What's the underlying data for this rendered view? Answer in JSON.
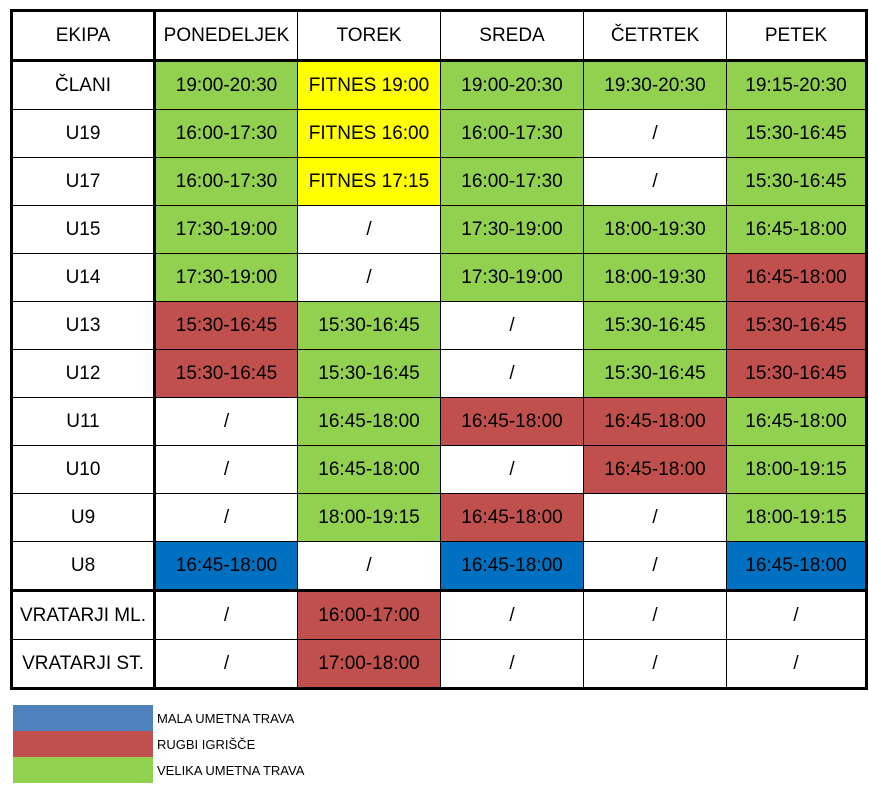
{
  "colors": {
    "green": "#92d050",
    "yellow": "#ffff00",
    "red": "#c0504d",
    "blue": "#0070c0",
    "legend_blue": "#4f81bd",
    "legend_red": "#c0504d",
    "legend_green": "#92d050"
  },
  "schedule": {
    "headers": [
      "EKIPA",
      "PONEDELJEK",
      "TOREK",
      "SREDA",
      "ČETRTEK",
      "PETEK"
    ],
    "rows": [
      {
        "team": "ČLANI",
        "cells": [
          {
            "text": "19:00-20:30",
            "color": "green"
          },
          {
            "text": "FITNES 19:00",
            "color": "yellow"
          },
          {
            "text": "19:00-20:30",
            "color": "green"
          },
          {
            "text": "19:30-20:30",
            "color": "green"
          },
          {
            "text": "19:15-20:30",
            "color": "green"
          }
        ]
      },
      {
        "team": "U19",
        "cells": [
          {
            "text": "16:00-17:30",
            "color": "green"
          },
          {
            "text": "FITNES 16:00",
            "color": "yellow"
          },
          {
            "text": "16:00-17:30",
            "color": "green"
          },
          {
            "text": "/",
            "color": "white"
          },
          {
            "text": "15:30-16:45",
            "color": "green"
          }
        ]
      },
      {
        "team": "U17",
        "cells": [
          {
            "text": "16:00-17:30",
            "color": "green"
          },
          {
            "text": "FITNES 17:15",
            "color": "yellow"
          },
          {
            "text": "16:00-17:30",
            "color": "green"
          },
          {
            "text": "/",
            "color": "white"
          },
          {
            "text": "15:30-16:45",
            "color": "green"
          }
        ]
      },
      {
        "team": "U15",
        "cells": [
          {
            "text": "17:30-19:00",
            "color": "green"
          },
          {
            "text": "/",
            "color": "white"
          },
          {
            "text": "17:30-19:00",
            "color": "green"
          },
          {
            "text": "18:00-19:30",
            "color": "green"
          },
          {
            "text": "16:45-18:00",
            "color": "green"
          }
        ]
      },
      {
        "team": "U14",
        "cells": [
          {
            "text": "17:30-19:00",
            "color": "green"
          },
          {
            "text": "/",
            "color": "white"
          },
          {
            "text": "17:30-19:00",
            "color": "green"
          },
          {
            "text": "18:00-19:30",
            "color": "green"
          },
          {
            "text": "16:45-18:00",
            "color": "red"
          }
        ]
      },
      {
        "team": "U13",
        "cells": [
          {
            "text": "15:30-16:45",
            "color": "red"
          },
          {
            "text": "15:30-16:45",
            "color": "green"
          },
          {
            "text": "/",
            "color": "white"
          },
          {
            "text": "15:30-16:45",
            "color": "green"
          },
          {
            "text": "15:30-16:45",
            "color": "red"
          }
        ]
      },
      {
        "team": "U12",
        "cells": [
          {
            "text": "15:30-16:45",
            "color": "red"
          },
          {
            "text": "15:30-16:45",
            "color": "green"
          },
          {
            "text": "/",
            "color": "white"
          },
          {
            "text": "15:30-16:45",
            "color": "green"
          },
          {
            "text": "15:30-16:45",
            "color": "red"
          }
        ]
      },
      {
        "team": "U11",
        "cells": [
          {
            "text": "/",
            "color": "white"
          },
          {
            "text": "16:45-18:00",
            "color": "green"
          },
          {
            "text": "16:45-18:00",
            "color": "red"
          },
          {
            "text": "16:45-18:00",
            "color": "red"
          },
          {
            "text": "16:45-18:00",
            "color": "green"
          }
        ]
      },
      {
        "team": "U10",
        "cells": [
          {
            "text": "/",
            "color": "white"
          },
          {
            "text": "16:45-18:00",
            "color": "green"
          },
          {
            "text": "/",
            "color": "white"
          },
          {
            "text": "16:45-18:00",
            "color": "red"
          },
          {
            "text": "18:00-19:15",
            "color": "green"
          }
        ]
      },
      {
        "team": "U9",
        "cells": [
          {
            "text": "/",
            "color": "white"
          },
          {
            "text": "18:00-19:15",
            "color": "green"
          },
          {
            "text": "16:45-18:00",
            "color": "red"
          },
          {
            "text": "/",
            "color": "white"
          },
          {
            "text": "18:00-19:15",
            "color": "green"
          }
        ]
      },
      {
        "team": "U8",
        "cells": [
          {
            "text": "16:45-18:00",
            "color": "blue"
          },
          {
            "text": "/",
            "color": "white"
          },
          {
            "text": "16:45-18:00",
            "color": "blue"
          },
          {
            "text": "/",
            "color": "white"
          },
          {
            "text": "16:45-18:00",
            "color": "blue"
          }
        ]
      },
      {
        "team": "VRATARJI ML.",
        "cells": [
          {
            "text": "/",
            "color": "white"
          },
          {
            "text": "16:00-17:00",
            "color": "red"
          },
          {
            "text": "/",
            "color": "white"
          },
          {
            "text": "/",
            "color": "white"
          },
          {
            "text": "/",
            "color": "white"
          }
        ]
      },
      {
        "team": "VRATARJI ST.",
        "cells": [
          {
            "text": "/",
            "color": "white"
          },
          {
            "text": "17:00-18:00",
            "color": "red"
          },
          {
            "text": "/",
            "color": "white"
          },
          {
            "text": "/",
            "color": "white"
          },
          {
            "text": "/",
            "color": "white"
          }
        ]
      }
    ]
  },
  "legend": [
    {
      "label": "MALA UMETNA TRAVA",
      "color": "legend_blue"
    },
    {
      "label": "RUGBI IGRIŠČE",
      "color": "legend_red"
    },
    {
      "label": "VELIKA UMETNA TRAVA",
      "color": "legend_green"
    }
  ]
}
